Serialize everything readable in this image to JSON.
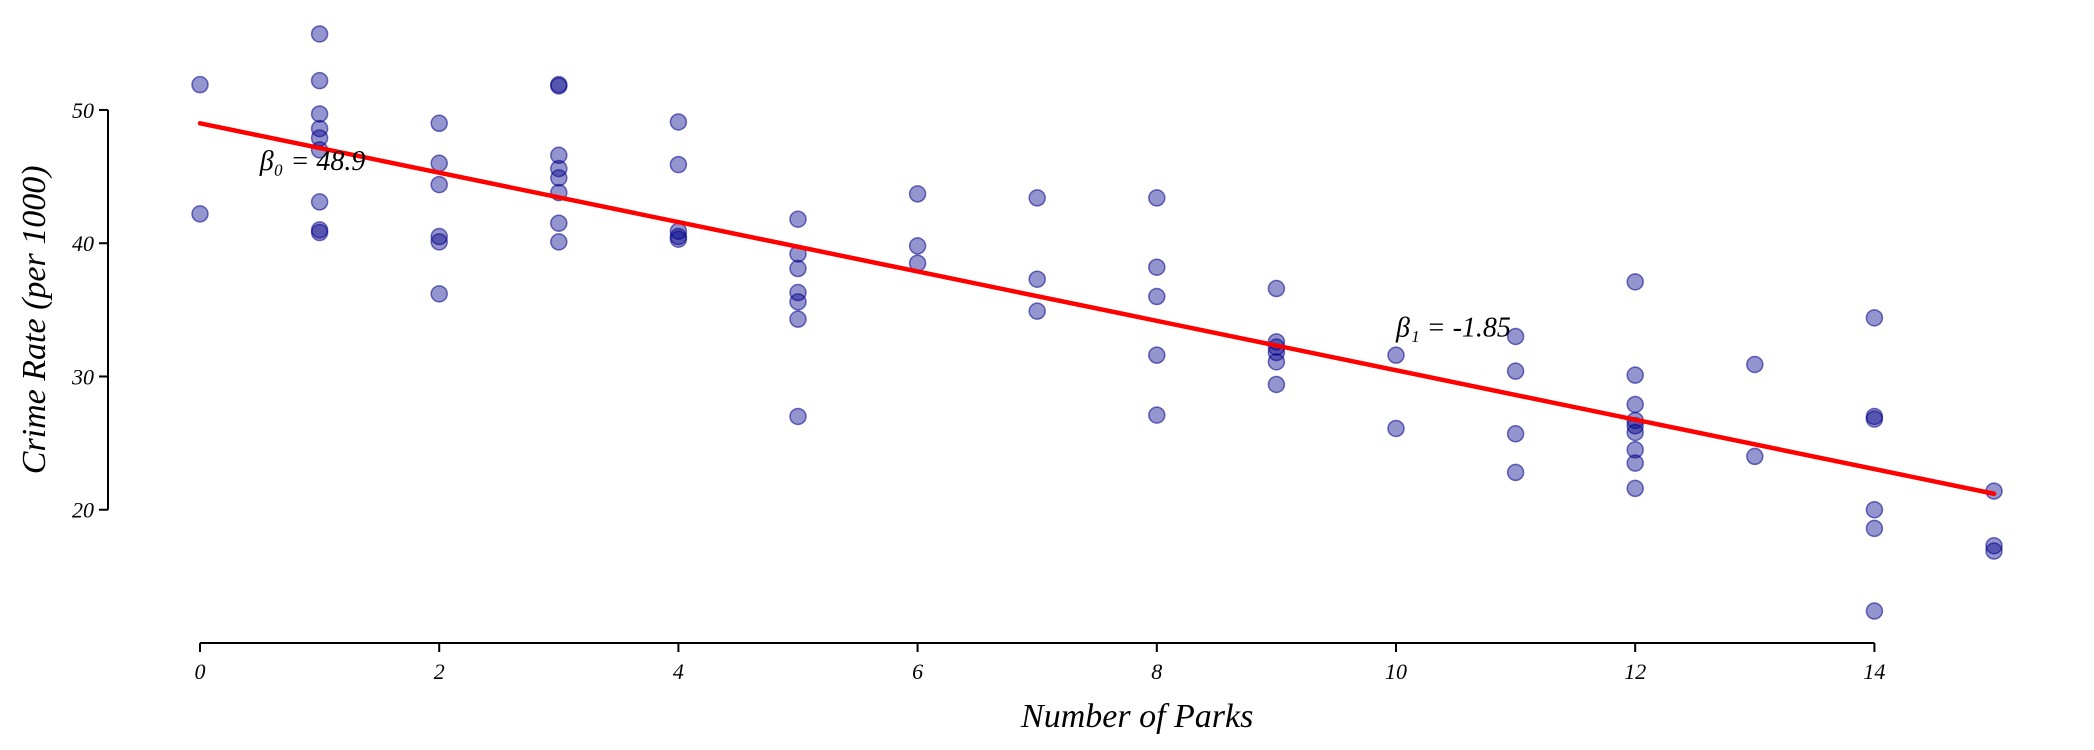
{
  "chart_data": {
    "type": "scatter",
    "title": "",
    "xlabel": "Number of Parks",
    "ylabel": "Crime Rate (per 1000)",
    "xlim": [
      0,
      15
    ],
    "ylim": [
      10,
      56
    ],
    "x_ticks": [
      0,
      2,
      4,
      6,
      8,
      10,
      12,
      14
    ],
    "y_ticks": [
      20,
      30,
      40,
      50
    ],
    "grid": false,
    "point_color": "#00008b",
    "line_color": "#ff0000",
    "points": [
      {
        "x": 0,
        "y": 51.9
      },
      {
        "x": 0,
        "y": 42.2
      },
      {
        "x": 1,
        "y": 55.7
      },
      {
        "x": 1,
        "y": 52.2
      },
      {
        "x": 1,
        "y": 49.7
      },
      {
        "x": 1,
        "y": 48.6
      },
      {
        "x": 1,
        "y": 47.9
      },
      {
        "x": 1,
        "y": 47.0
      },
      {
        "x": 1,
        "y": 43.1
      },
      {
        "x": 1,
        "y": 41.0
      },
      {
        "x": 1,
        "y": 40.8
      },
      {
        "x": 2,
        "y": 49.0
      },
      {
        "x": 2,
        "y": 46.0
      },
      {
        "x": 2,
        "y": 44.4
      },
      {
        "x": 2,
        "y": 40.5
      },
      {
        "x": 2,
        "y": 40.1
      },
      {
        "x": 2,
        "y": 36.2
      },
      {
        "x": 3,
        "y": 51.9
      },
      {
        "x": 3,
        "y": 51.8
      },
      {
        "x": 3,
        "y": 46.6
      },
      {
        "x": 3,
        "y": 45.6
      },
      {
        "x": 3,
        "y": 44.9
      },
      {
        "x": 3,
        "y": 43.8
      },
      {
        "x": 3,
        "y": 41.5
      },
      {
        "x": 3,
        "y": 40.1
      },
      {
        "x": 4,
        "y": 49.1
      },
      {
        "x": 4,
        "y": 45.9
      },
      {
        "x": 4,
        "y": 40.9
      },
      {
        "x": 4,
        "y": 40.5
      },
      {
        "x": 4,
        "y": 40.3
      },
      {
        "x": 5,
        "y": 41.8
      },
      {
        "x": 5,
        "y": 39.2
      },
      {
        "x": 5,
        "y": 38.1
      },
      {
        "x": 5,
        "y": 36.3
      },
      {
        "x": 5,
        "y": 35.6
      },
      {
        "x": 5,
        "y": 34.3
      },
      {
        "x": 5,
        "y": 27.0
      },
      {
        "x": 6,
        "y": 43.7
      },
      {
        "x": 6,
        "y": 39.8
      },
      {
        "x": 6,
        "y": 38.5
      },
      {
        "x": 7,
        "y": 43.4
      },
      {
        "x": 7,
        "y": 37.3
      },
      {
        "x": 7,
        "y": 34.9
      },
      {
        "x": 8,
        "y": 43.4
      },
      {
        "x": 8,
        "y": 38.2
      },
      {
        "x": 8,
        "y": 36.0
      },
      {
        "x": 8,
        "y": 31.6
      },
      {
        "x": 8,
        "y": 27.1
      },
      {
        "x": 9,
        "y": 36.6
      },
      {
        "x": 9,
        "y": 32.6
      },
      {
        "x": 9,
        "y": 32.2
      },
      {
        "x": 9,
        "y": 31.8
      },
      {
        "x": 9,
        "y": 31.1
      },
      {
        "x": 9,
        "y": 29.4
      },
      {
        "x": 10,
        "y": 31.6
      },
      {
        "x": 10,
        "y": 26.1
      },
      {
        "x": 11,
        "y": 33.0
      },
      {
        "x": 11,
        "y": 30.4
      },
      {
        "x": 11,
        "y": 25.7
      },
      {
        "x": 11,
        "y": 22.8
      },
      {
        "x": 12,
        "y": 37.1
      },
      {
        "x": 12,
        "y": 30.1
      },
      {
        "x": 12,
        "y": 27.9
      },
      {
        "x": 12,
        "y": 26.7
      },
      {
        "x": 12,
        "y": 26.3
      },
      {
        "x": 12,
        "y": 25.8
      },
      {
        "x": 12,
        "y": 24.5
      },
      {
        "x": 12,
        "y": 23.5
      },
      {
        "x": 12,
        "y": 21.6
      },
      {
        "x": 13,
        "y": 30.9
      },
      {
        "x": 13,
        "y": 24.0
      },
      {
        "x": 14,
        "y": 34.4
      },
      {
        "x": 14,
        "y": 27.0
      },
      {
        "x": 14,
        "y": 26.8
      },
      {
        "x": 14,
        "y": 20.0
      },
      {
        "x": 14,
        "y": 18.6
      },
      {
        "x": 14,
        "y": 12.4
      },
      {
        "x": 15,
        "y": 21.4
      },
      {
        "x": 15,
        "y": 17.3
      },
      {
        "x": 15,
        "y": 16.9
      }
    ],
    "regression_line": {
      "x": [
        0,
        15
      ],
      "y": [
        49.0,
        21.2
      ]
    },
    "annotations": [
      {
        "label": "β₀ = 48.9",
        "x": 0.5,
        "y": 45.5
      },
      {
        "label": "β₁ = -1.85",
        "x": 10.0,
        "y": 33.0
      }
    ]
  }
}
